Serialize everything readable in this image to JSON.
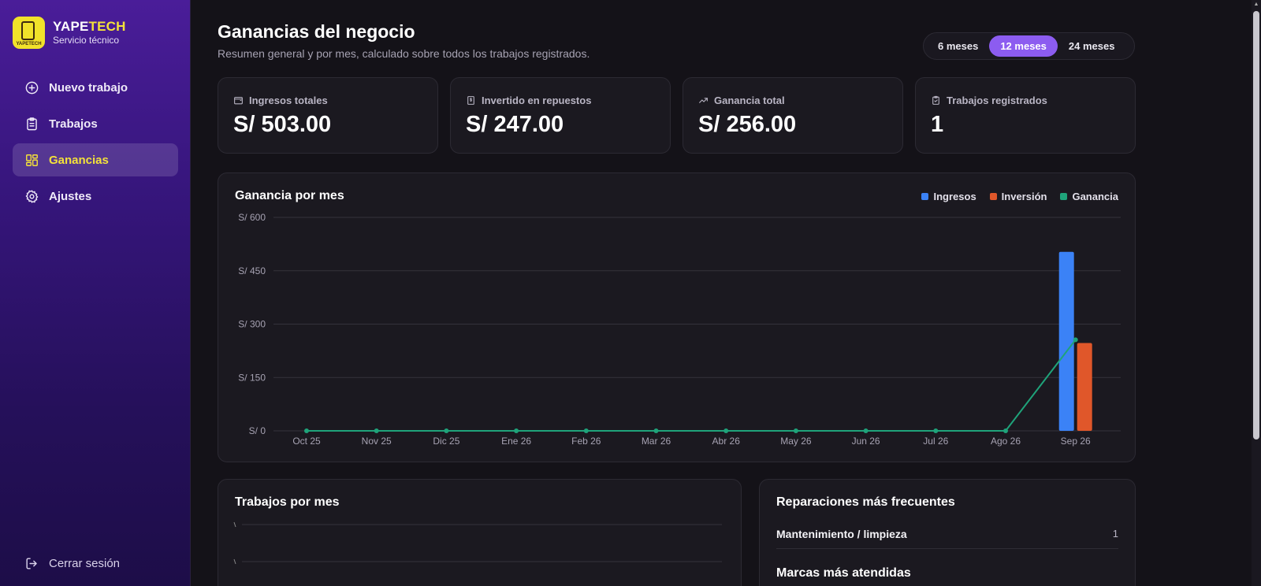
{
  "brand": {
    "name_part1": "YAPE",
    "name_part2": "TECH",
    "subtitle": "Servicio técnico",
    "logo_text": "YAPETECH"
  },
  "nav": {
    "items": [
      {
        "label": "Nuevo trabajo",
        "icon": "plus-circle-icon",
        "active": false
      },
      {
        "label": "Trabajos",
        "icon": "clipboard-icon",
        "active": false
      },
      {
        "label": "Ganancias",
        "icon": "dashboard-icon",
        "active": true
      },
      {
        "label": "Ajustes",
        "icon": "gear-icon",
        "active": false
      }
    ],
    "logout_label": "Cerrar sesión"
  },
  "header": {
    "title": "Ganancias del negocio",
    "subtitle": "Resumen general y por mes, calculado sobre todos los trabajos registrados."
  },
  "range": {
    "options": [
      "6 meses",
      "12 meses",
      "24 meses"
    ],
    "selected": "12 meses"
  },
  "stats": [
    {
      "label": "Ingresos totales",
      "value": "S/ 503.00",
      "icon": "wallet-icon"
    },
    {
      "label": "Invertido en repuestos",
      "value": "S/ 247.00",
      "icon": "receipt-icon"
    },
    {
      "label": "Ganancia total",
      "value": "S/ 256.00",
      "icon": "trending-up-icon"
    },
    {
      "label": "Trabajos registrados",
      "value": "1",
      "icon": "clipboard-check-icon"
    }
  ],
  "colors": {
    "ingresos": "#3b82f6",
    "inversion": "#e0572a",
    "ganancia": "#1fa37a",
    "accent": "#8c5cf0",
    "brand_yellow": "#f3e13a"
  },
  "profit_chart": {
    "title": "Ganancia por mes",
    "legend": [
      "Ingresos",
      "Inversión",
      "Ganancia"
    ]
  },
  "chart_data": [
    {
      "type": "bar",
      "title": "Ganancia por mes",
      "categories": [
        "Oct 25",
        "Nov 25",
        "Dic 25",
        "Ene 26",
        "Feb 26",
        "Mar 26",
        "Abr 26",
        "May 26",
        "Jun 26",
        "Jul 26",
        "Ago 26",
        "Sep 26"
      ],
      "series": [
        {
          "name": "Ingresos",
          "type": "bar",
          "values": [
            0,
            0,
            0,
            0,
            0,
            0,
            0,
            0,
            0,
            0,
            0,
            503
          ]
        },
        {
          "name": "Inversión",
          "type": "bar",
          "values": [
            0,
            0,
            0,
            0,
            0,
            0,
            0,
            0,
            0,
            0,
            0,
            247
          ]
        },
        {
          "name": "Ganancia",
          "type": "line",
          "values": [
            0,
            0,
            0,
            0,
            0,
            0,
            0,
            0,
            0,
            0,
            0,
            256
          ]
        }
      ],
      "yticks": [
        "S/ 0",
        "S/ 150",
        "S/ 300",
        "S/ 450",
        "S/ 600"
      ],
      "ylim": [
        0,
        600
      ],
      "grid": true,
      "legend_position": "top-right"
    }
  ],
  "jobs_chart": {
    "title": "Trabajos por mes"
  },
  "frequent": {
    "title": "Reparaciones más frecuentes",
    "items": [
      {
        "label": "Mantenimiento / limpieza",
        "count": "1"
      }
    ]
  },
  "brands": {
    "title": "Marcas más atendidas"
  }
}
